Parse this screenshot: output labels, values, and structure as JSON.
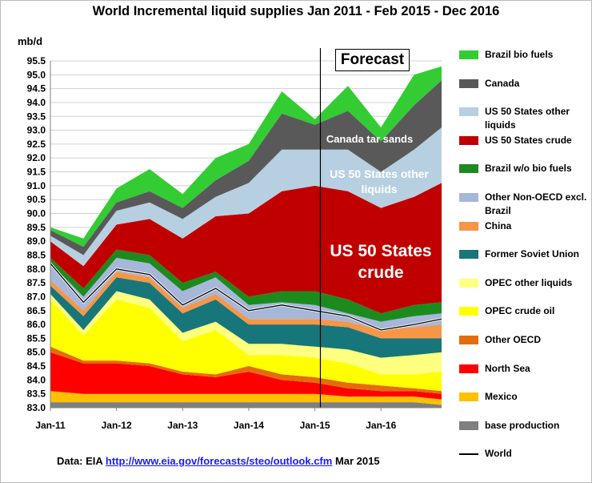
{
  "chart_data": {
    "type": "area",
    "title": "World Incremental liquid supplies Jan 2011 - Feb 2015 - Dec 2016",
    "ylabel": "mb/d",
    "ylim": [
      83.0,
      95.5
    ],
    "yticks": [
      "83.0",
      "83.5",
      "84.0",
      "84.5",
      "85.0",
      "85.5",
      "86.0",
      "86.5",
      "87.0",
      "87.5",
      "88.0",
      "88.5",
      "89.0",
      "89.5",
      "90.0",
      "90.5",
      "91.0",
      "91.5",
      "92.0",
      "92.5",
      "93.0",
      "93.5",
      "94.0",
      "94.5",
      "95.0",
      "95.5"
    ],
    "xticks": [
      "Jan-11",
      "Jan-12",
      "Jan-13",
      "Jan-14",
      "Jan-15",
      "Jan-16"
    ],
    "x_start": "Jan-11",
    "x_end": "Dec-16",
    "forecast_start": "Feb-15",
    "forecast_label": "Forecast",
    "grid": true,
    "legend_position": "right",
    "stack_note": "values are cumulative stack tops (mb/d) sampled every 6 months Jan-11 ... Jul-16 plus Dec-16",
    "sample_x": [
      "Jan-11",
      "Jul-11",
      "Jan-12",
      "Jul-12",
      "Jan-13",
      "Jul-13",
      "Jan-14",
      "Jul-14",
      "Jan-15",
      "Jul-15",
      "Jan-16",
      "Jul-16",
      "Dec-16"
    ],
    "series": [
      {
        "name": "base production",
        "color": "#7f7f7f",
        "top": [
          83.2,
          83.2,
          83.2,
          83.2,
          83.2,
          83.2,
          83.2,
          83.2,
          83.2,
          83.2,
          83.2,
          83.2,
          83.1
        ]
      },
      {
        "name": "Mexico",
        "color": "#ffc000",
        "top": [
          83.6,
          83.5,
          83.5,
          83.5,
          83.5,
          83.5,
          83.5,
          83.5,
          83.5,
          83.4,
          83.4,
          83.4,
          83.3
        ]
      },
      {
        "name": "North Sea",
        "color": "#ff0000",
        "top": [
          85.0,
          84.6,
          84.6,
          84.5,
          84.2,
          84.1,
          84.3,
          84.0,
          83.9,
          83.7,
          83.6,
          83.6,
          83.5
        ]
      },
      {
        "name": "Other OECD",
        "color": "#e46c0a",
        "top": [
          85.2,
          84.7,
          84.7,
          84.6,
          84.3,
          84.2,
          84.5,
          84.2,
          84.1,
          83.9,
          83.8,
          83.7,
          83.6
        ]
      },
      {
        "name": "OPEC crude oil",
        "color": "#ffff00",
        "top": [
          86.9,
          85.6,
          86.9,
          86.6,
          85.4,
          85.8,
          84.9,
          84.9,
          84.8,
          84.6,
          84.2,
          84.2,
          84.3
        ]
      },
      {
        "name": "OPEC other liquids",
        "color": "#ffff80",
        "top": [
          87.1,
          85.8,
          87.2,
          86.9,
          85.7,
          86.1,
          85.3,
          85.3,
          85.2,
          85.1,
          84.8,
          84.9,
          85.0
        ]
      },
      {
        "name": "Former Soviet Union",
        "color": "#17767a",
        "top": [
          87.4,
          86.3,
          87.7,
          87.5,
          86.4,
          86.9,
          86.0,
          86.0,
          86.0,
          85.9,
          85.5,
          85.5,
          85.5
        ]
      },
      {
        "name": "China",
        "color": "#f79646",
        "top": [
          87.6,
          86.5,
          87.9,
          87.7,
          86.6,
          87.1,
          86.2,
          86.2,
          86.2,
          86.1,
          85.8,
          85.9,
          86.0
        ]
      },
      {
        "name": "Other Non-OECD excl. Brazil",
        "color": "#a6b7d9",
        "top": [
          88.2,
          87.0,
          88.4,
          88.2,
          87.2,
          87.7,
          86.7,
          86.8,
          86.7,
          86.4,
          86.1,
          86.3,
          86.4
        ]
      },
      {
        "name": "Brazil w/o bio fuels",
        "color": "#1d8a1d",
        "top": [
          88.4,
          87.3,
          88.7,
          88.5,
          87.5,
          87.9,
          87.0,
          87.2,
          87.2,
          86.9,
          86.4,
          86.7,
          86.8
        ]
      },
      {
        "name": "US 50 States crude",
        "color": "#c00000",
        "top": [
          89.0,
          88.1,
          89.6,
          89.8,
          89.1,
          89.9,
          90.0,
          90.8,
          91.0,
          90.8,
          90.2,
          90.6,
          91.1
        ]
      },
      {
        "name": "US 50 States other liquids",
        "color": "#b7d0e1",
        "top": [
          89.2,
          88.5,
          90.1,
          90.4,
          89.8,
          90.6,
          91.1,
          92.3,
          92.3,
          92.3,
          91.5,
          92.3,
          93.1
        ]
      },
      {
        "name": "Canada",
        "color": "#595959",
        "top": [
          89.4,
          88.8,
          90.4,
          90.8,
          90.2,
          91.2,
          91.9,
          93.6,
          93.2,
          93.7,
          92.6,
          93.9,
          94.8
        ]
      },
      {
        "name": "Brazil bio fuels",
        "color": "#33cc33",
        "top": [
          89.5,
          89.1,
          90.9,
          91.6,
          90.7,
          92.0,
          92.5,
          94.4,
          93.4,
          94.6,
          93.1,
          95.0,
          95.3
        ]
      }
    ],
    "world_line": {
      "name": "World",
      "values": [
        88.2,
        86.8,
        88.0,
        87.8,
        86.7,
        87.3,
        86.5,
        86.7,
        86.5,
        86.3,
        85.8,
        86.0,
        86.2
      ]
    },
    "annotations": {
      "canada_tar_sands": "Canada tar sands",
      "us_other_1": "US 50 States other",
      "us_other_2": "liquids",
      "us_crude_1": "US 50 States",
      "us_crude_2": "crude"
    }
  },
  "legend": [
    {
      "label": "Brazil bio fuels",
      "color": "#33cc33"
    },
    {
      "label": "Canada",
      "color": "#595959"
    },
    {
      "label": "US 50 States other liquids",
      "color": "#b7d0e1"
    },
    {
      "label": "US 50 States crude",
      "color": "#c00000"
    },
    {
      "label": "Brazil w/o bio fuels",
      "color": "#1d8a1d"
    },
    {
      "label": "Other Non-OECD excl. Brazil",
      "color": "#a6b7d9"
    },
    {
      "label": "China",
      "color": "#f79646"
    },
    {
      "label": "Former Soviet Union",
      "color": "#17767a"
    },
    {
      "label": "OPEC other liquids",
      "color": "#ffff80"
    },
    {
      "label": "OPEC crude oil",
      "color": "#ffff00"
    },
    {
      "label": "Other OECD",
      "color": "#e46c0a"
    },
    {
      "label": "North Sea",
      "color": "#ff0000"
    },
    {
      "label": "Mexico",
      "color": "#ffc000"
    },
    {
      "label": "base production",
      "color": "#7f7f7f"
    },
    {
      "label": "World",
      "color": "#000000",
      "line": true
    }
  ],
  "source": {
    "prefix": "Data: EIA ",
    "link": "http://www.eia.gov/forecasts/steo/outlook.cfm",
    "suffix": " Mar 2015"
  }
}
